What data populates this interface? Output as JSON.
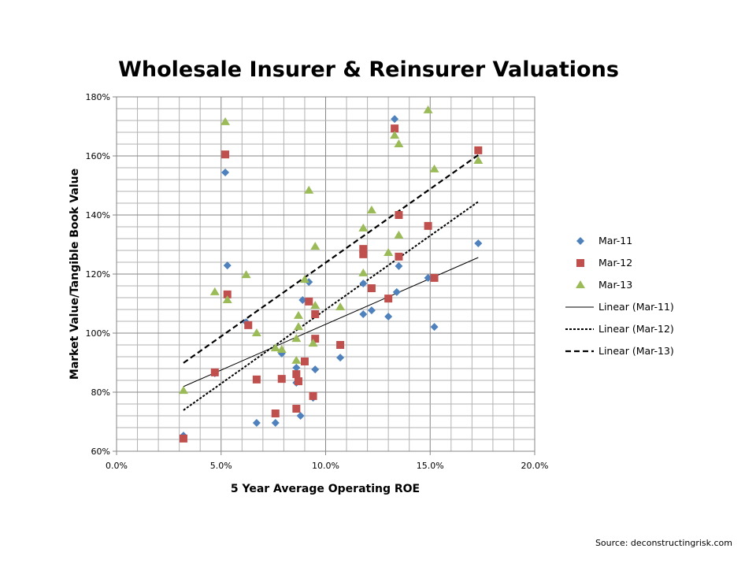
{
  "chart_data": {
    "type": "scatter",
    "title": "Wholesale Insurer & Reinsurer Valuations",
    "xlabel": "5 Year Average Operating ROE",
    "ylabel": "Market Value/Tangible Book Value",
    "xlim": [
      0,
      20
    ],
    "ylim": [
      60,
      180
    ],
    "x_ticks": [
      0,
      5,
      10,
      15,
      20
    ],
    "x_tick_labels": [
      "0.0%",
      "5.0%",
      "10.0%",
      "15.0%",
      "20.0%"
    ],
    "y_ticks": [
      60,
      80,
      100,
      120,
      140,
      160,
      180
    ],
    "y_tick_labels": [
      "60%",
      "80%",
      "100%",
      "120%",
      "140%",
      "160%",
      "180%"
    ],
    "grid": true,
    "legend_position": "right",
    "series": [
      {
        "name": "Mar-11",
        "marker": "diamond",
        "color": "#4f81bd",
        "points": [
          [
            3.2,
            65.3
          ],
          [
            4.7,
            86.4
          ],
          [
            5.2,
            154.4
          ],
          [
            5.3,
            122.9
          ],
          [
            6.2,
            103.7
          ],
          [
            6.7,
            69.6
          ],
          [
            7.6,
            69.6
          ],
          [
            7.9,
            93.1
          ],
          [
            8.6,
            83.2
          ],
          [
            8.6,
            88.3
          ],
          [
            8.8,
            72.0
          ],
          [
            8.9,
            111.2
          ],
          [
            9.2,
            117.3
          ],
          [
            9.4,
            78.1
          ],
          [
            9.5,
            87.7
          ],
          [
            10.7,
            91.7
          ],
          [
            11.8,
            106.4
          ],
          [
            11.8,
            116.8
          ],
          [
            12.2,
            107.7
          ],
          [
            13.0,
            105.6
          ],
          [
            13.4,
            113.9
          ],
          [
            13.5,
            122.7
          ],
          [
            13.3,
            172.5
          ],
          [
            14.9,
            118.7
          ],
          [
            15.2,
            102.1
          ],
          [
            17.3,
            130.4
          ]
        ]
      },
      {
        "name": "Mar-12",
        "marker": "square",
        "color": "#c0504d",
        "points": [
          [
            3.2,
            64.3
          ],
          [
            4.7,
            86.7
          ],
          [
            5.2,
            160.5
          ],
          [
            5.3,
            113.1
          ],
          [
            6.3,
            102.7
          ],
          [
            6.7,
            84.3
          ],
          [
            7.6,
            72.8
          ],
          [
            7.9,
            84.5
          ],
          [
            8.6,
            74.4
          ],
          [
            8.6,
            86.1
          ],
          [
            8.7,
            83.7
          ],
          [
            9.0,
            90.4
          ],
          [
            9.2,
            110.7
          ],
          [
            9.4,
            78.7
          ],
          [
            9.5,
            98.1
          ],
          [
            9.5,
            106.4
          ],
          [
            10.7,
            96.0
          ],
          [
            11.8,
            126.7
          ],
          [
            11.8,
            128.5
          ],
          [
            12.2,
            115.2
          ],
          [
            13.0,
            111.7
          ],
          [
            13.3,
            169.3
          ],
          [
            13.5,
            125.9
          ],
          [
            13.5,
            140.0
          ],
          [
            14.9,
            136.3
          ],
          [
            15.2,
            118.7
          ],
          [
            17.3,
            161.9
          ]
        ]
      },
      {
        "name": "Mar-13",
        "marker": "triangle",
        "color": "#9bbb59",
        "points": [
          [
            3.2,
            80.5
          ],
          [
            4.7,
            113.9
          ],
          [
            5.2,
            171.5
          ],
          [
            5.3,
            111.2
          ],
          [
            6.2,
            119.7
          ],
          [
            6.7,
            100.0
          ],
          [
            7.6,
            94.9
          ],
          [
            7.9,
            94.4
          ],
          [
            8.6,
            90.7
          ],
          [
            8.6,
            98.1
          ],
          [
            8.7,
            102.1
          ],
          [
            8.7,
            105.9
          ],
          [
            9.0,
            118.1
          ],
          [
            9.2,
            148.3
          ],
          [
            9.4,
            96.5
          ],
          [
            9.5,
            109.3
          ],
          [
            9.5,
            129.3
          ],
          [
            10.7,
            108.8
          ],
          [
            11.8,
            135.5
          ],
          [
            11.8,
            120.3
          ],
          [
            12.2,
            141.6
          ],
          [
            13.0,
            127.2
          ],
          [
            13.3,
            166.9
          ],
          [
            13.5,
            164.0
          ],
          [
            13.5,
            133.1
          ],
          [
            14.9,
            175.5
          ],
          [
            15.2,
            155.5
          ],
          [
            17.3,
            158.4
          ]
        ]
      }
    ],
    "trendlines": [
      {
        "name": "Linear (Mar-11)",
        "style": "solid",
        "x": [
          3.2,
          17.3
        ],
        "y": [
          81.9,
          125.6
        ]
      },
      {
        "name": "Linear (Mar-12)",
        "style": "dotted",
        "x": [
          3.2,
          17.3
        ],
        "y": [
          73.9,
          144.5
        ]
      },
      {
        "name": "Linear (Mar-13)",
        "style": "dashed",
        "x": [
          3.2,
          17.3
        ],
        "y": [
          89.9,
          160.3
        ]
      }
    ]
  },
  "source": "Source: deconstructingrisk.com"
}
